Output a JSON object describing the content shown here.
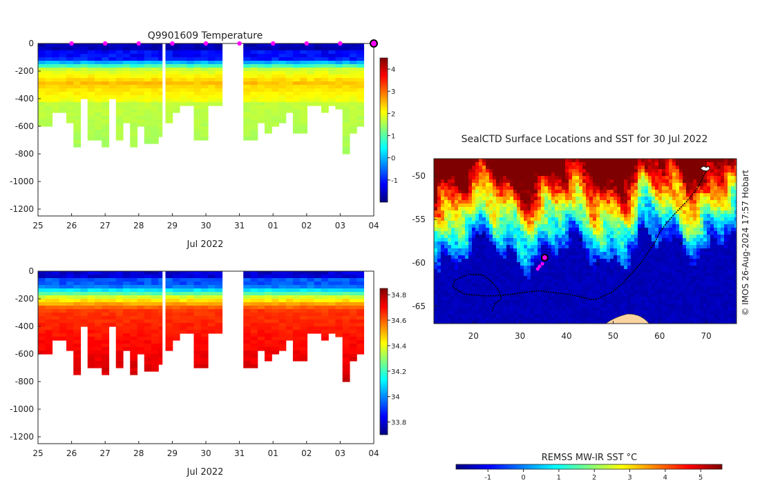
{
  "profile_title": "Q9901609  Temperature",
  "map_title": "SealCTD Surface Locations and SST for 30 Jul 2022",
  "colorbar_title": "REMSS MW-IR SST °C",
  "copyright": "© IMOS 26-Aug-2024 17:57 Hobart",
  "colors": {
    "jet": [
      "#00007f",
      "#0000ff",
      "#007fff",
      "#00ffff",
      "#7fff7f",
      "#ffff00",
      "#ff7f00",
      "#ff0000",
      "#7f0000"
    ],
    "marker": "#ff00ff",
    "track": "#000000",
    "land": "#f9d3a0"
  },
  "chart_data": [
    {
      "type": "heatmap",
      "name": "temperature-section",
      "title": "Q9901609  Temperature",
      "xlabel": "Jul 2022",
      "ylabel": "",
      "x_ticks": [
        "25",
        "26",
        "27",
        "28",
        "29",
        "30",
        "31",
        "01",
        "02",
        "03",
        "04"
      ],
      "y_ticks": [
        "0",
        "-200",
        "-400",
        "-600",
        "-800",
        "-1000",
        "-1200"
      ],
      "xlim": [
        25,
        35
      ],
      "ylim": [
        -1250,
        0
      ],
      "profile_depths": [
        600,
        600,
        500,
        500,
        560,
        745,
        400,
        700,
        700,
        730,
        400,
        700,
        560,
        750,
        600,
        710,
        710,
        660,
        560,
        500,
        450,
        450,
        700,
        700,
        430,
        430,
        430,
        430,
        490,
        700,
        700,
        560,
        630,
        600,
        560,
        500,
        650,
        650,
        430,
        430,
        500,
        440,
        470,
        790,
        630,
        580
      ],
      "surface_markers": [
        26,
        27,
        28,
        29,
        30,
        31,
        32,
        33,
        34
      ],
      "current_marker": 35,
      "colorbar": {
        "min": -2,
        "max": 4.5,
        "ticks": [
          "-1",
          "0",
          "1",
          "2",
          "3",
          "4"
        ]
      }
    },
    {
      "type": "heatmap",
      "name": "salinity-section",
      "xlabel": "Jul 2022",
      "x_ticks": [
        "25",
        "26",
        "27",
        "28",
        "29",
        "30",
        "31",
        "01",
        "02",
        "03",
        "04"
      ],
      "y_ticks": [
        "0",
        "-200",
        "-400",
        "-600",
        "-800",
        "-1000",
        "-1200"
      ],
      "xlim": [
        25,
        35
      ],
      "ylim": [
        -1250,
        0
      ],
      "colorbar": {
        "min": 33.7,
        "max": 34.85,
        "ticks": [
          "33.8",
          "34",
          "34.2",
          "34.4",
          "34.6",
          "34.8"
        ]
      }
    },
    {
      "type": "scatter",
      "name": "sst-map",
      "title": "SealCTD Surface Locations and SST for 30 Jul 2022",
      "x_ticks": [
        "20",
        "30",
        "40",
        "50",
        "60",
        "70"
      ],
      "y_ticks": [
        "-50",
        "-55",
        "-60",
        "-65"
      ],
      "xlim": [
        11.5,
        76.5
      ],
      "ylim": [
        -67,
        -48
      ],
      "track_lon": [
        70,
        68,
        66,
        63.5,
        61.5,
        60,
        59,
        57.5,
        56,
        54,
        52,
        50,
        48,
        46.5,
        45,
        43,
        40,
        37,
        34,
        31,
        28.5,
        25,
        22,
        18,
        15.5,
        16,
        19,
        22,
        24,
        25.5,
        26,
        24.5,
        24
      ],
      "track_lat": [
        -49.4,
        -51.5,
        -52.8,
        -54.2,
        -55.4,
        -56.5,
        -57.6,
        -58.8,
        -60,
        -61.2,
        -62.4,
        -63.3,
        -63.8,
        -64.2,
        -64.2,
        -63.9,
        -63.6,
        -63.4,
        -63.2,
        -63.4,
        -63.6,
        -63.8,
        -63.8,
        -63.6,
        -62.8,
        -62,
        -61.3,
        -61.4,
        -62.2,
        -63.2,
        -64.1,
        -64.8,
        -65.6
      ],
      "recent_lon": [
        33.8,
        34.2,
        34.8
      ],
      "recent_lat": [
        -60.7,
        -60.4,
        -60.1
      ],
      "current_position": {
        "lon": 35.3,
        "lat": -59.4
      },
      "colorbar": {
        "min": -1.9,
        "max": 5.6,
        "ticks": [
          "-1",
          "0",
          "1",
          "2",
          "3",
          "4",
          "5"
        ]
      }
    }
  ]
}
